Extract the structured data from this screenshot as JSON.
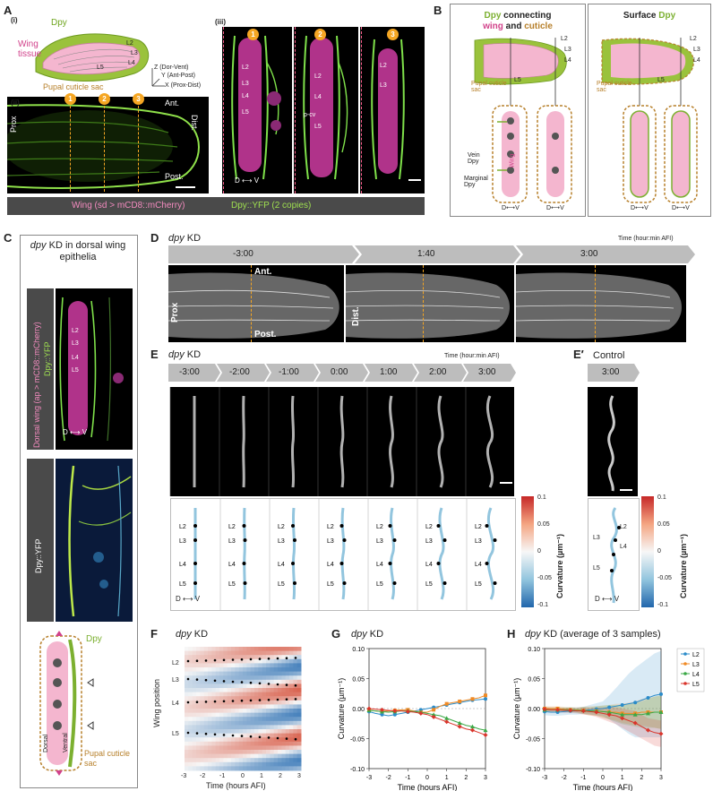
{
  "panel_labels": {
    "A": "A",
    "B": "B",
    "C": "C",
    "D": "D",
    "E": "E",
    "Eprime": "E′",
    "F": "F",
    "G": "G",
    "H": "H"
  },
  "A": {
    "sub_i": "(i)",
    "sub_ii": "(ii)",
    "sub_iii": "(iii)",
    "dpy": "Dpy",
    "wing_tissue": "Wing tissue",
    "pupal_cuticle_sac": "Pupal cuticle sac",
    "veins": [
      "L2",
      "L3",
      "L4",
      "L5"
    ],
    "axis_z": "Z (Dor-Vent)",
    "axis_y": "Y (Ant-Post)",
    "axis_x": "X (Prox-Dist)",
    "ant": "Ant.",
    "post": "Post.",
    "prox": "Prox",
    "dist": "Dist.",
    "section_nums": [
      "1",
      "2",
      "3"
    ],
    "pcv": "p-cv",
    "dv": "D ⟷ V",
    "caption_wing": "Wing (sd > mCD8::mCherry)",
    "caption_dpy": "Dpy::YFP (2 copies)"
  },
  "B": {
    "title_left_1": "Dpy",
    "title_left_2": " connecting",
    "title_left_3": "wing",
    "title_left_4": " and ",
    "title_left_5": "cuticle",
    "title_right_1": "Surface ",
    "title_right_2": "Dpy",
    "pupal_cuticle_sac": "Pupal cuticle sac",
    "veins": [
      "L2",
      "L3",
      "L4",
      "L5"
    ],
    "vein_dpy": "Vein Dpy",
    "marginal_dpy": "Marginal Dpy",
    "wing": "Wing",
    "dv": "D⟷V"
  },
  "C": {
    "title_1": "dpy",
    "title_2": " KD in dorsal wing epithelia",
    "side_label_1": "Dorsal wing (ap > mCD8::mCherry)",
    "side_label_2": "Dpy::YFP",
    "side_label_3": "Dpy::YFP",
    "veins": [
      "L2",
      "L3",
      "L4",
      "L5"
    ],
    "dv": "D ⟷ V",
    "dpy": "Dpy",
    "dorsal": "Dorsal",
    "ventral": "Ventral",
    "pupal_cuticle_sac": "Pupal cuticle sac"
  },
  "D": {
    "title_1": "dpy",
    "title_2": " KD",
    "time_note": "Time (hour:min AFI)",
    "times": [
      "-3:00",
      "1:40",
      "3:00"
    ],
    "ant": "Ant.",
    "post": "Post.",
    "prox": "Prox",
    "dist": "Dist."
  },
  "E": {
    "title_1": "dpy",
    "title_2": " KD",
    "time_note": "Time (hour:min AFI)",
    "times": [
      "-3:00",
      "-2:00",
      "-1:00",
      "0:00",
      "1:00",
      "2:00",
      "3:00"
    ],
    "veins": [
      "L2",
      "L3",
      "L4",
      "L5"
    ],
    "dv": "D ⟷ V",
    "colorbar_title": "Curvature (µm⁻¹)",
    "colorbar_ticks": [
      "0.1",
      "0.05",
      "0",
      "-0.05",
      "-0.1"
    ]
  },
  "Eprime": {
    "title": "Control",
    "time": "3:00",
    "veins": [
      "L2",
      "L3",
      "L4",
      "L5"
    ],
    "dv": "D ⟷ V",
    "colorbar_title": "Curvature (µm⁻¹)",
    "colorbar_ticks": [
      "0.1",
      "0.05",
      "0",
      "-0.05",
      "-0.1"
    ]
  },
  "F": {
    "title_1": "dpy",
    "title_2": " KD",
    "ylabel": "Wing position",
    "xlabel": "Time (hours AFI)",
    "rows": [
      "L2",
      "L3",
      "L4",
      "L5"
    ],
    "xticks": [
      "-3",
      "-2",
      "-1",
      "0",
      "1",
      "2",
      "3"
    ]
  },
  "G": {
    "title_1": "dpy",
    "title_2": " KD"
  },
  "H": {
    "title_1": "dpy",
    "title_2": " KD (average of 3 samples)"
  },
  "chart_data": [
    {
      "type": "line",
      "panel": "G",
      "title": "dpy KD",
      "xlabel": "Time (hours AFI)",
      "ylabel": "Curvature (µm⁻¹)",
      "xlim": [
        -3,
        3
      ],
      "ylim": [
        -0.1,
        0.1
      ],
      "xticks": [
        -3,
        -2,
        -1,
        0,
        1,
        2,
        3
      ],
      "yticks": [
        0.1,
        0.05,
        0.0,
        -0.05,
        -0.1
      ],
      "ytick_labels": [
        "0.10",
        "0.05",
        "0.00",
        "-0.05",
        "-0.10"
      ],
      "x": [
        -3,
        -2.67,
        -2.33,
        -2,
        -1.67,
        -1.33,
        -1,
        -0.67,
        -0.33,
        0,
        0.33,
        0.67,
        1,
        1.33,
        1.67,
        2,
        2.33,
        2.67,
        3
      ],
      "series": [
        {
          "name": "L2",
          "color": "#2a8bc9",
          "marker": "circle",
          "values": [
            -0.005,
            -0.008,
            -0.01,
            -0.012,
            -0.01,
            -0.008,
            -0.006,
            -0.004,
            -0.002,
            0.0,
            0.002,
            0.004,
            0.006,
            0.008,
            0.01,
            0.012,
            0.014,
            0.015,
            0.016
          ]
        },
        {
          "name": "L3",
          "color": "#f08a24",
          "marker": "square",
          "values": [
            -0.002,
            -0.004,
            -0.005,
            -0.004,
            -0.003,
            -0.002,
            -0.002,
            -0.004,
            -0.006,
            -0.006,
            -0.002,
            0.004,
            0.008,
            0.01,
            0.012,
            0.014,
            0.016,
            0.018,
            0.022
          ]
        },
        {
          "name": "L4",
          "color": "#3aa845",
          "marker": "triangle",
          "values": [
            -0.003,
            -0.004,
            -0.005,
            -0.006,
            -0.005,
            -0.004,
            -0.004,
            -0.005,
            -0.006,
            -0.008,
            -0.01,
            -0.012,
            -0.016,
            -0.02,
            -0.024,
            -0.028,
            -0.03,
            -0.034,
            -0.036
          ]
        },
        {
          "name": "L5",
          "color": "#d9342b",
          "marker": "diamond",
          "values": [
            0.0,
            -0.001,
            -0.002,
            -0.003,
            -0.004,
            -0.004,
            -0.005,
            -0.006,
            -0.008,
            -0.01,
            -0.014,
            -0.018,
            -0.022,
            -0.026,
            -0.03,
            -0.034,
            -0.036,
            -0.04,
            -0.044
          ]
        }
      ]
    },
    {
      "type": "line",
      "panel": "H",
      "title": "dpy KD (average of 3 samples)",
      "xlabel": "Time (hours AFI)",
      "ylabel": "Curvature (µm⁻¹)",
      "xlim": [
        -3,
        3
      ],
      "ylim": [
        -0.1,
        0.1
      ],
      "xticks": [
        -3,
        -2,
        -1,
        0,
        1,
        2,
        3
      ],
      "yticks": [
        0.1,
        0.05,
        0.0,
        -0.05,
        -0.1
      ],
      "ytick_labels": [
        "0.10",
        "0.05",
        "0.00",
        "-0.05",
        "-0.10"
      ],
      "legend": "top-right",
      "x": [
        -3,
        -2.67,
        -2.33,
        -2,
        -1.67,
        -1.33,
        -1,
        -0.67,
        -0.33,
        0,
        0.33,
        0.67,
        1,
        1.33,
        1.67,
        2,
        2.33,
        2.67,
        3
      ],
      "series": [
        {
          "name": "L2",
          "color": "#2a8bc9",
          "marker": "circle",
          "values": [
            -0.005,
            -0.006,
            -0.006,
            -0.005,
            -0.004,
            -0.004,
            -0.003,
            -0.002,
            -0.001,
            0.0,
            0.002,
            0.004,
            0.006,
            0.008,
            0.01,
            0.014,
            0.018,
            0.022,
            0.024
          ],
          "band": [
            0.006,
            0.006,
            0.006,
            0.006,
            0.006,
            0.006,
            0.006,
            0.008,
            0.01,
            0.012,
            0.02,
            0.03,
            0.04,
            0.05,
            0.058,
            0.062,
            0.066,
            0.07,
            0.072
          ]
        },
        {
          "name": "L3",
          "color": "#f08a24",
          "marker": "square",
          "values": [
            0.0,
            0.0,
            0.0,
            -0.001,
            -0.002,
            -0.002,
            -0.003,
            -0.004,
            -0.004,
            -0.005,
            -0.006,
            -0.006,
            -0.008,
            -0.008,
            -0.008,
            -0.006,
            -0.006,
            -0.006,
            -0.006
          ],
          "band": [
            0.004,
            0.004,
            0.004,
            0.004,
            0.004,
            0.004,
            0.006,
            0.008,
            0.008,
            0.01,
            0.012,
            0.014,
            0.016,
            0.018,
            0.02,
            0.022,
            0.024,
            0.026,
            0.028
          ]
        },
        {
          "name": "L4",
          "color": "#3aa845",
          "marker": "triangle",
          "values": [
            -0.002,
            -0.002,
            -0.002,
            -0.002,
            -0.002,
            -0.003,
            -0.003,
            -0.004,
            -0.004,
            -0.005,
            -0.006,
            -0.008,
            -0.01,
            -0.01,
            -0.01,
            -0.01,
            -0.008,
            -0.006,
            -0.006
          ],
          "band": [
            0.004,
            0.004,
            0.004,
            0.004,
            0.004,
            0.004,
            0.006,
            0.006,
            0.008,
            0.01,
            0.012,
            0.014,
            0.016,
            0.018,
            0.02,
            0.022,
            0.024,
            0.026,
            0.028
          ]
        },
        {
          "name": "L5",
          "color": "#d9342b",
          "marker": "diamond",
          "values": [
            -0.001,
            -0.002,
            -0.002,
            -0.003,
            -0.003,
            -0.004,
            -0.004,
            -0.005,
            -0.006,
            -0.008,
            -0.01,
            -0.012,
            -0.016,
            -0.02,
            -0.024,
            -0.03,
            -0.036,
            -0.04,
            -0.042
          ],
          "band": [
            0.004,
            0.004,
            0.004,
            0.004,
            0.004,
            0.004,
            0.006,
            0.006,
            0.008,
            0.01,
            0.012,
            0.014,
            0.016,
            0.018,
            0.02,
            0.02,
            0.02,
            0.022,
            0.022
          ]
        }
      ]
    },
    {
      "type": "heatmap",
      "panel": "F",
      "title": "dpy KD",
      "xlabel": "Time (hours AFI)",
      "ylabel": "Wing position",
      "xlim": [
        -3,
        3
      ],
      "row_labels": [
        "L2",
        "L3",
        "L4",
        "L5"
      ],
      "colormap": "blue-white-red"
    }
  ]
}
